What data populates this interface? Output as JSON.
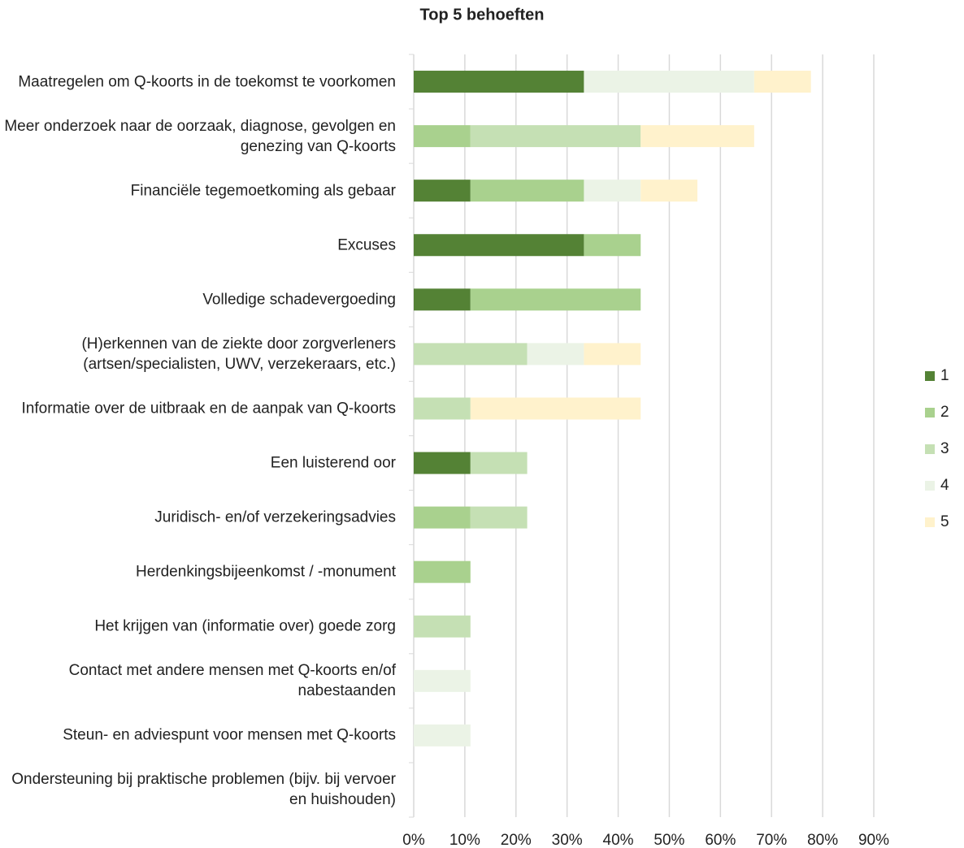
{
  "chart_data": {
    "type": "stacked_bar_horizontal",
    "title": "Top 5 behoeften",
    "categories": [
      "Maatregelen om Q-koorts in de toekomst te voorkomen",
      "Meer onderzoek naar de oorzaak, diagnose, gevolgen en genezing van Q-koorts",
      "Financiële tegemoetkoming als gebaar",
      "Excuses",
      "Volledige schadevergoeding",
      "(H)erkennen van de ziekte door zorgverleners (artsen/specialisten, UWV, verzekeraars, etc.)",
      "Informatie over de uitbraak en de aanpak van Q-koorts",
      "Een luisterend oor",
      "Juridisch- en/of verzekeringsadvies",
      "Herdenkingsbijeenkomst / -monument",
      "Het krijgen van (informatie over) goede zorg",
      "Contact met andere mensen met Q-koorts en/of nabestaanden",
      "Steun- en adviespunt voor mensen met Q-koorts",
      "Ondersteuning bij praktische problemen (bijv. bij vervoer en huishouden)"
    ],
    "series": [
      {
        "name": "1",
        "color": "#548235",
        "values": [
          33.3,
          0,
          11.1,
          33.3,
          11.1,
          0,
          0,
          11.1,
          0,
          0,
          0,
          0,
          0,
          0
        ]
      },
      {
        "name": "2",
        "color": "#a9d18e",
        "values": [
          0,
          11.1,
          22.2,
          11.1,
          33.3,
          0,
          0,
          0,
          11.1,
          11.1,
          0,
          0,
          0,
          0
        ]
      },
      {
        "name": "3",
        "color": "#c5e0b4",
        "values": [
          0,
          33.3,
          0,
          0,
          0,
          22.2,
          11.1,
          11.1,
          11.1,
          0,
          11.1,
          0,
          0,
          0
        ]
      },
      {
        "name": "4",
        "color": "#ebf3e6",
        "values": [
          33.3,
          0,
          11.1,
          0,
          0,
          11.1,
          0,
          0,
          0,
          0,
          0,
          11.1,
          11.1,
          0
        ]
      },
      {
        "name": "5",
        "color": "#fff2cc",
        "values": [
          11.1,
          22.2,
          11.1,
          0,
          0,
          11.1,
          33.3,
          0,
          0,
          0,
          0,
          0,
          0,
          0
        ]
      }
    ],
    "xlim": [
      0,
      90
    ],
    "xticks": [
      {
        "value": 0,
        "label": "0%"
      },
      {
        "value": 10,
        "label": "10%"
      },
      {
        "value": 20,
        "label": "20%"
      },
      {
        "value": 30,
        "label": "30%"
      },
      {
        "value": 40,
        "label": "40%"
      },
      {
        "value": 50,
        "label": "50%"
      },
      {
        "value": 60,
        "label": "60%"
      },
      {
        "value": 70,
        "label": "70%"
      },
      {
        "value": 80,
        "label": "80%"
      },
      {
        "value": 90,
        "label": "90%"
      }
    ],
    "grid": true,
    "legend": "right"
  }
}
